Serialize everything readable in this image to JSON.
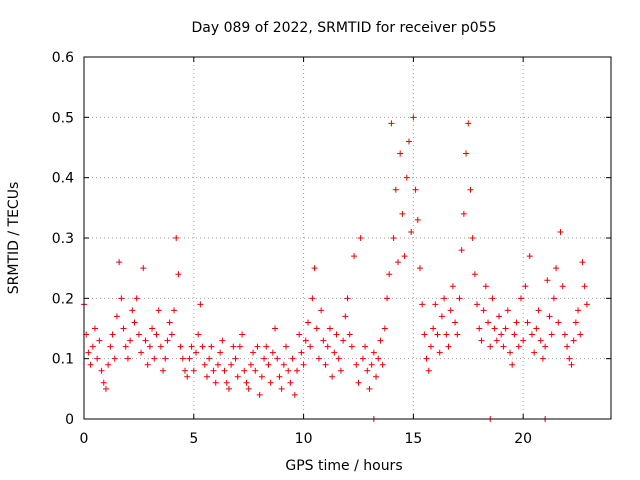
{
  "chart_data": {
    "type": "scatter",
    "title": "Day 089 of 2022, SRMTID for receiver p055",
    "xlabel": "GPS time / hours",
    "ylabel": "SRMTID / TECUs",
    "xlim": [
      0,
      24
    ],
    "ylim": [
      0,
      0.6
    ],
    "xticks": [
      0,
      5,
      10,
      15,
      20
    ],
    "yticks": [
      0,
      0.1,
      0.2,
      0.3,
      0.4,
      0.5,
      0.6
    ],
    "grid": true,
    "marker": "+",
    "series_color": "#ee0000",
    "series": [
      {
        "name": "SRMTID",
        "points": [
          [
            0.0,
            0.19
          ],
          [
            0.1,
            0.14
          ],
          [
            0.2,
            0.11
          ],
          [
            0.3,
            0.09
          ],
          [
            0.4,
            0.12
          ],
          [
            0.5,
            0.15
          ],
          [
            0.6,
            0.1
          ],
          [
            0.7,
            0.13
          ],
          [
            0.8,
            0.08
          ],
          [
            0.9,
            0.06
          ],
          [
            1.0,
            0.05
          ],
          [
            1.1,
            0.09
          ],
          [
            1.2,
            0.12
          ],
          [
            1.3,
            0.14
          ],
          [
            1.4,
            0.1
          ],
          [
            1.5,
            0.17
          ],
          [
            1.6,
            0.26
          ],
          [
            1.7,
            0.2
          ],
          [
            1.8,
            0.15
          ],
          [
            1.9,
            0.12
          ],
          [
            2.0,
            0.1
          ],
          [
            2.1,
            0.13
          ],
          [
            2.2,
            0.18
          ],
          [
            2.3,
            0.16
          ],
          [
            2.4,
            0.2
          ],
          [
            2.5,
            0.14
          ],
          [
            2.6,
            0.11
          ],
          [
            2.7,
            0.25
          ],
          [
            2.8,
            0.13
          ],
          [
            2.9,
            0.09
          ],
          [
            3.0,
            0.12
          ],
          [
            3.1,
            0.15
          ],
          [
            3.2,
            0.1
          ],
          [
            3.3,
            0.14
          ],
          [
            3.4,
            0.18
          ],
          [
            3.5,
            0.12
          ],
          [
            3.6,
            0.08
          ],
          [
            3.7,
            0.1
          ],
          [
            3.8,
            0.13
          ],
          [
            3.9,
            0.16
          ],
          [
            4.0,
            0.14
          ],
          [
            4.1,
            0.18
          ],
          [
            4.2,
            0.3
          ],
          [
            4.3,
            0.24
          ],
          [
            4.4,
            0.12
          ],
          [
            4.5,
            0.1
          ],
          [
            4.6,
            0.08
          ],
          [
            4.7,
            0.07
          ],
          [
            4.8,
            0.1
          ],
          [
            4.9,
            0.12
          ],
          [
            5.0,
            0.08
          ],
          [
            5.1,
            0.11
          ],
          [
            5.2,
            0.14
          ],
          [
            5.3,
            0.19
          ],
          [
            5.4,
            0.12
          ],
          [
            5.5,
            0.09
          ],
          [
            5.6,
            0.07
          ],
          [
            5.7,
            0.1
          ],
          [
            5.8,
            0.12
          ],
          [
            5.9,
            0.08
          ],
          [
            6.0,
            0.06
          ],
          [
            6.1,
            0.09
          ],
          [
            6.2,
            0.11
          ],
          [
            6.3,
            0.13
          ],
          [
            6.4,
            0.08
          ],
          [
            6.5,
            0.06
          ],
          [
            6.6,
            0.05
          ],
          [
            6.7,
            0.09
          ],
          [
            6.8,
            0.12
          ],
          [
            6.9,
            0.1
          ],
          [
            7.0,
            0.07
          ],
          [
            7.1,
            0.12
          ],
          [
            7.2,
            0.14
          ],
          [
            7.3,
            0.08
          ],
          [
            7.4,
            0.06
          ],
          [
            7.5,
            0.05
          ],
          [
            7.6,
            0.09
          ],
          [
            7.7,
            0.11
          ],
          [
            7.8,
            0.08
          ],
          [
            7.9,
            0.12
          ],
          [
            8.0,
            0.04
          ],
          [
            8.1,
            0.07
          ],
          [
            8.2,
            0.1
          ],
          [
            8.3,
            0.12
          ],
          [
            8.4,
            0.09
          ],
          [
            8.5,
            0.06
          ],
          [
            8.6,
            0.11
          ],
          [
            8.7,
            0.15
          ],
          [
            8.8,
            0.1
          ],
          [
            8.9,
            0.07
          ],
          [
            9.0,
            0.05
          ],
          [
            9.1,
            0.09
          ],
          [
            9.2,
            0.12
          ],
          [
            9.3,
            0.08
          ],
          [
            9.4,
            0.06
          ],
          [
            9.5,
            0.1
          ],
          [
            9.6,
            0.04
          ],
          [
            9.7,
            0.08
          ],
          [
            9.8,
            0.14
          ],
          [
            9.9,
            0.11
          ],
          [
            10.0,
            0.09
          ],
          [
            10.1,
            0.13
          ],
          [
            10.2,
            0.16
          ],
          [
            10.3,
            0.12
          ],
          [
            10.4,
            0.2
          ],
          [
            10.5,
            0.25
          ],
          [
            10.6,
            0.15
          ],
          [
            10.7,
            0.1
          ],
          [
            10.8,
            0.18
          ],
          [
            10.9,
            0.13
          ],
          [
            11.0,
            0.09
          ],
          [
            11.1,
            0.12
          ],
          [
            11.2,
            0.15
          ],
          [
            11.3,
            0.07
          ],
          [
            11.4,
            0.11
          ],
          [
            11.5,
            0.14
          ],
          [
            11.6,
            0.1
          ],
          [
            11.7,
            0.08
          ],
          [
            11.8,
            0.13
          ],
          [
            11.9,
            0.17
          ],
          [
            12.0,
            0.2
          ],
          [
            12.1,
            0.14
          ],
          [
            12.2,
            0.12
          ],
          [
            12.3,
            0.27
          ],
          [
            12.4,
            0.09
          ],
          [
            12.5,
            0.06
          ],
          [
            12.6,
            0.3
          ],
          [
            12.7,
            0.1
          ],
          [
            12.8,
            0.12
          ],
          [
            12.9,
            0.08
          ],
          [
            13.0,
            0.05
          ],
          [
            13.1,
            0.09
          ],
          [
            13.2,
            0.11
          ],
          [
            13.3,
            0.07
          ],
          [
            13.4,
            0.1
          ],
          [
            13.5,
            0.13
          ],
          [
            13.6,
            0.09
          ],
          [
            13.7,
            0.15
          ],
          [
            13.8,
            0.2
          ],
          [
            13.9,
            0.24
          ],
          [
            14.0,
            0.49
          ],
          [
            14.1,
            0.3
          ],
          [
            14.2,
            0.38
          ],
          [
            14.3,
            0.26
          ],
          [
            14.4,
            0.44
          ],
          [
            14.5,
            0.34
          ],
          [
            14.6,
            0.27
          ],
          [
            14.7,
            0.4
          ],
          [
            14.8,
            0.46
          ],
          [
            14.9,
            0.31
          ],
          [
            15.0,
            0.5
          ],
          [
            15.1,
            0.38
          ],
          [
            15.2,
            0.33
          ],
          [
            15.3,
            0.25
          ],
          [
            15.4,
            0.19
          ],
          [
            15.5,
            0.14
          ],
          [
            15.6,
            0.1
          ],
          [
            15.7,
            0.08
          ],
          [
            15.8,
            0.12
          ],
          [
            15.9,
            0.15
          ],
          [
            16.0,
            0.19
          ],
          [
            16.1,
            0.14
          ],
          [
            16.2,
            0.11
          ],
          [
            16.3,
            0.17
          ],
          [
            16.4,
            0.2
          ],
          [
            16.5,
            0.14
          ],
          [
            16.6,
            0.12
          ],
          [
            16.7,
            0.18
          ],
          [
            16.8,
            0.22
          ],
          [
            16.9,
            0.16
          ],
          [
            17.0,
            0.14
          ],
          [
            17.1,
            0.2
          ],
          [
            17.2,
            0.28
          ],
          [
            17.3,
            0.34
          ],
          [
            17.4,
            0.44
          ],
          [
            17.5,
            0.49
          ],
          [
            17.6,
            0.38
          ],
          [
            17.7,
            0.3
          ],
          [
            17.8,
            0.24
          ],
          [
            17.9,
            0.19
          ],
          [
            18.0,
            0.15
          ],
          [
            18.1,
            0.13
          ],
          [
            18.2,
            0.18
          ],
          [
            18.3,
            0.22
          ],
          [
            18.4,
            0.16
          ],
          [
            18.5,
            0.12
          ],
          [
            18.6,
            0.2
          ],
          [
            18.7,
            0.15
          ],
          [
            18.8,
            0.13
          ],
          [
            18.9,
            0.17
          ],
          [
            19.0,
            0.14
          ],
          [
            19.1,
            0.12
          ],
          [
            19.2,
            0.15
          ],
          [
            19.3,
            0.18
          ],
          [
            19.4,
            0.11
          ],
          [
            19.5,
            0.09
          ],
          [
            19.6,
            0.14
          ],
          [
            19.7,
            0.16
          ],
          [
            19.8,
            0.12
          ],
          [
            19.9,
            0.2
          ],
          [
            20.0,
            0.13
          ],
          [
            20.1,
            0.22
          ],
          [
            20.2,
            0.16
          ],
          [
            20.3,
            0.27
          ],
          [
            20.4,
            0.14
          ],
          [
            20.5,
            0.11
          ],
          [
            20.6,
            0.15
          ],
          [
            20.7,
            0.18
          ],
          [
            20.8,
            0.13
          ],
          [
            20.9,
            0.1
          ],
          [
            21.0,
            0.12
          ],
          [
            21.1,
            0.23
          ],
          [
            21.2,
            0.17
          ],
          [
            21.3,
            0.14
          ],
          [
            21.4,
            0.2
          ],
          [
            21.5,
            0.25
          ],
          [
            21.6,
            0.16
          ],
          [
            21.7,
            0.31
          ],
          [
            21.8,
            0.22
          ],
          [
            21.9,
            0.14
          ],
          [
            22.0,
            0.12
          ],
          [
            22.1,
            0.1
          ],
          [
            22.2,
            0.09
          ],
          [
            22.3,
            0.13
          ],
          [
            22.4,
            0.16
          ],
          [
            22.5,
            0.18
          ],
          [
            22.6,
            0.14
          ],
          [
            22.7,
            0.26
          ],
          [
            22.8,
            0.22
          ],
          [
            22.9,
            0.19
          ],
          [
            13.2,
            0.0
          ],
          [
            18.5,
            0.0
          ],
          [
            21.0,
            0.0
          ]
        ]
      }
    ]
  }
}
